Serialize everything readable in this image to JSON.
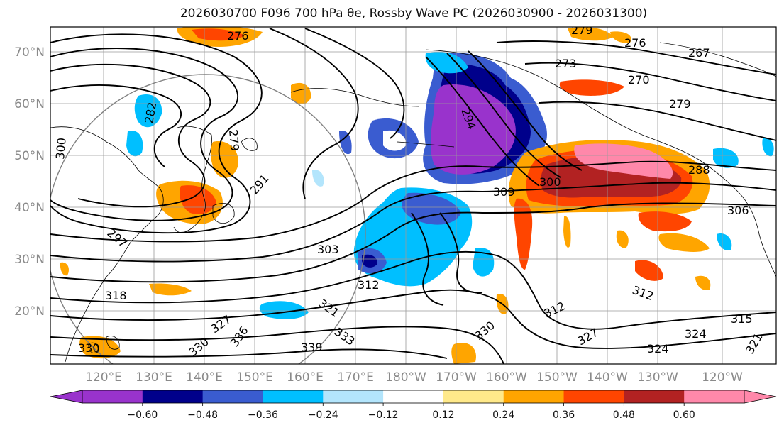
{
  "title": "2026030700 F096 700 hPa θe, Rossby Wave PC (2026030900 - 2026031300)",
  "lat_labels": [
    "70°N",
    "60°N",
    "50°N",
    "40°N",
    "30°N",
    "20°N"
  ],
  "lon_labels": [
    "120°E",
    "130°E",
    "140°E",
    "150°E",
    "160°E",
    "170°E",
    "180°W",
    "170°W",
    "160°W",
    "150°W",
    "140°W",
    "130°W",
    "120°W"
  ],
  "contour_labels": [
    "276",
    "279",
    "276",
    "267",
    "273",
    "270",
    "279",
    "282",
    "279",
    "300",
    "288",
    "291",
    "294",
    "300",
    "309",
    "306",
    "297",
    "303",
    "312",
    "318",
    "321",
    "327",
    "330",
    "336",
    "333",
    "339",
    "330",
    "312",
    "327",
    "330",
    "324",
    "315",
    "321",
    "312",
    "324"
  ],
  "colorbar": {
    "colors": [
      "#9933cc",
      "#00008b",
      "#3a5cd0",
      "#00bfff",
      "#b3e5fc",
      "#ffffff",
      "#ffe98a",
      "#ffa500",
      "#ff4500",
      "#b22222",
      "#ff88aa"
    ],
    "tick_labels": [
      "−0.60",
      "−0.48",
      "−0.36",
      "−0.24",
      "−0.12",
      "0.12",
      "0.24",
      "0.36",
      "0.48",
      "0.60"
    ]
  }
}
